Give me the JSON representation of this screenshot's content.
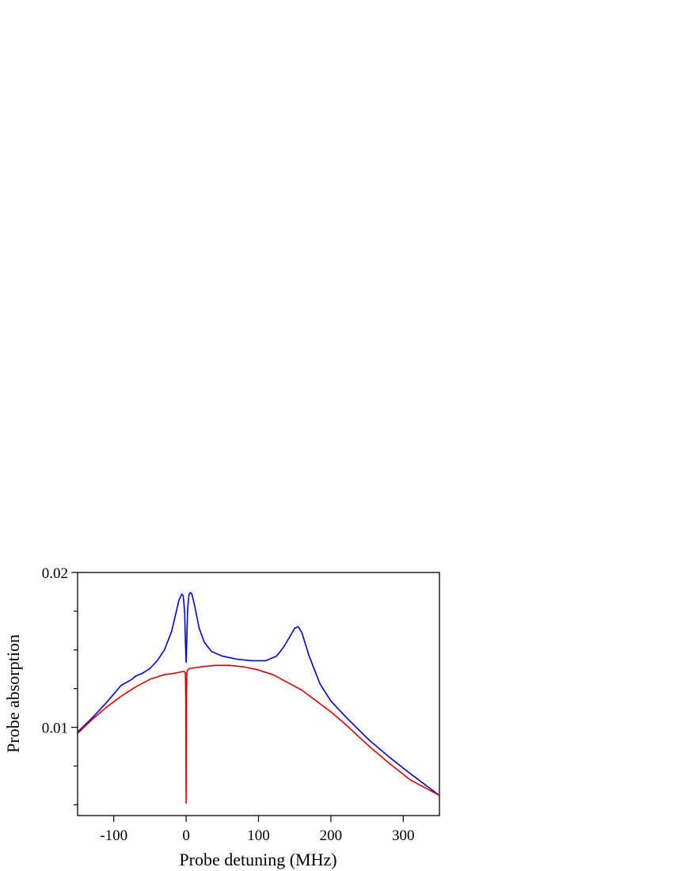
{
  "chart_data": {
    "type": "line",
    "title": "",
    "xlabel": "Probe detuning (MHz)",
    "ylabel": "Probe absorption",
    "xlim": [
      -150,
      350
    ],
    "ylim": [
      0.0043,
      0.02
    ],
    "x_ticks": [
      -100,
      0,
      100,
      200,
      300
    ],
    "x_tick_labels": [
      "-100",
      "0",
      "100",
      "200",
      "300"
    ],
    "y_ticks": [
      0.01,
      0.02
    ],
    "y_tick_labels": [
      "0.01",
      "0.02"
    ],
    "y_minor_ticks": [
      0.005,
      0.0075,
      0.0125,
      0.015,
      0.0175
    ],
    "grid": false,
    "legend": "none",
    "series": [
      {
        "color": "#0000dd",
        "x": [
          -150,
          -130,
          -110,
          -90,
          -75,
          -70,
          -60,
          -50,
          -40,
          -30,
          -20,
          -15,
          -10,
          -6,
          -4,
          -2,
          -1,
          0,
          1,
          2,
          4,
          6,
          8,
          12,
          18,
          25,
          35,
          50,
          70,
          90,
          110,
          125,
          135,
          145,
          150,
          155,
          160,
          170,
          185,
          200,
          220,
          250,
          280,
          310,
          350
        ],
        "y": [
          0.0097,
          0.0106,
          0.0116,
          0.0127,
          0.0131,
          0.0133,
          0.0135,
          0.0138,
          0.0143,
          0.015,
          0.0162,
          0.0172,
          0.0182,
          0.0186,
          0.0185,
          0.0174,
          0.0155,
          0.0142,
          0.0158,
          0.0176,
          0.0186,
          0.0187,
          0.0186,
          0.0178,
          0.0164,
          0.0155,
          0.0149,
          0.0146,
          0.0144,
          0.0143,
          0.0143,
          0.0146,
          0.0152,
          0.016,
          0.0164,
          0.0165,
          0.0161,
          0.0146,
          0.0128,
          0.0117,
          0.0107,
          0.0093,
          0.0081,
          0.007,
          0.0056
        ]
      },
      {
        "color": "#dd0000",
        "x": [
          -150,
          -130,
          -110,
          -90,
          -70,
          -50,
          -30,
          -15,
          -5,
          -2,
          -1,
          -0.5,
          0,
          0.5,
          1,
          2,
          5,
          20,
          40,
          60,
          80,
          100,
          120,
          140,
          160,
          180,
          200,
          220,
          250,
          280,
          310,
          350
        ],
        "y": [
          0.0096,
          0.0105,
          0.0113,
          0.012,
          0.0126,
          0.0131,
          0.0134,
          0.0135,
          0.0136,
          0.0136,
          0.0135,
          0.012,
          0.0051,
          0.0118,
          0.0135,
          0.0137,
          0.0138,
          0.0139,
          0.014,
          0.014,
          0.0139,
          0.0137,
          0.0134,
          0.0129,
          0.0124,
          0.0117,
          0.011,
          0.0102,
          0.0089,
          0.0077,
          0.0066,
          0.0056
        ]
      }
    ]
  }
}
